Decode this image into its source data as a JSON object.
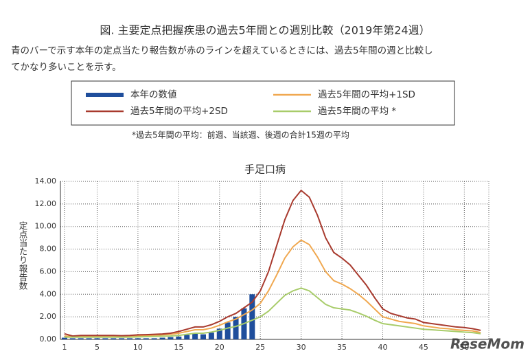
{
  "header": {
    "title": "図. 主要定点把握疾患の過去5年間との週別比較（2019年第24週）",
    "description": [
      "青のバーで示す本年の定点当たり報告数が赤のラインを超えているときには、過去5年間の週と比較し",
      "てかなり多いことを示す。"
    ],
    "footnote": "*過去5年間の平均：前週、当該週、後週の合計15週の平均"
  },
  "chart_data": {
    "type": "combo",
    "title": "手足口病",
    "y_label": "定点当たり報告数",
    "watermark": "ReseMom",
    "x": [
      1,
      2,
      3,
      4,
      5,
      6,
      7,
      8,
      9,
      10,
      11,
      12,
      13,
      14,
      15,
      16,
      17,
      18,
      19,
      20,
      21,
      22,
      23,
      24,
      25,
      26,
      27,
      28,
      29,
      30,
      31,
      32,
      33,
      34,
      35,
      36,
      37,
      38,
      39,
      40,
      41,
      42,
      43,
      44,
      45,
      46,
      47,
      48,
      49,
      50,
      51,
      52
    ],
    "series": [
      {
        "name": "本年の数値",
        "type": "bar",
        "color": "#1f4e9c",
        "values": [
          0.15,
          0.1,
          0.1,
          0.1,
          0.1,
          0.1,
          0.1,
          0.1,
          0.1,
          0.1,
          0.1,
          0.1,
          0.15,
          0.2,
          0.25,
          0.4,
          0.5,
          0.45,
          0.6,
          0.95,
          1.5,
          2.0,
          2.75,
          4.0,
          null,
          null,
          null,
          null,
          null,
          null,
          null,
          null,
          null,
          null,
          null,
          null,
          null,
          null,
          null,
          null,
          null,
          null,
          null,
          null,
          null,
          null,
          null,
          null,
          null,
          null,
          null,
          null
        ]
      },
      {
        "name": "過去5年間の平均+1SD",
        "type": "line",
        "color": "#f0a850",
        "values": [
          0.3,
          0.25,
          0.3,
          0.3,
          0.3,
          0.3,
          0.3,
          0.28,
          0.3,
          0.33,
          0.35,
          0.37,
          0.4,
          0.45,
          0.55,
          0.7,
          0.85,
          0.85,
          1.0,
          1.25,
          1.55,
          1.8,
          2.2,
          2.6,
          3.2,
          4.3,
          5.7,
          7.2,
          8.2,
          8.8,
          8.4,
          7.3,
          6.0,
          5.2,
          4.9,
          4.5,
          4.0,
          3.4,
          2.7,
          2.0,
          1.8,
          1.6,
          1.5,
          1.4,
          1.2,
          1.1,
          1.0,
          0.95,
          0.85,
          0.8,
          0.75,
          0.6
        ]
      },
      {
        "name": "過去5年間の平均+2SD",
        "type": "line",
        "color": "#a83a2e",
        "values": [
          0.5,
          0.3,
          0.35,
          0.35,
          0.35,
          0.35,
          0.35,
          0.33,
          0.35,
          0.4,
          0.42,
          0.45,
          0.48,
          0.55,
          0.7,
          0.9,
          1.1,
          1.1,
          1.3,
          1.6,
          2.0,
          2.3,
          2.8,
          3.3,
          4.3,
          6.0,
          8.3,
          10.6,
          12.3,
          13.2,
          12.6,
          11.0,
          9.0,
          7.7,
          7.2,
          6.6,
          5.7,
          4.8,
          3.7,
          2.7,
          2.3,
          2.1,
          1.9,
          1.8,
          1.5,
          1.4,
          1.3,
          1.2,
          1.1,
          1.05,
          0.95,
          0.8
        ]
      },
      {
        "name": "過去5年間の平均 *",
        "type": "line",
        "color": "#a8cc6a",
        "values": [
          0.2,
          0.2,
          0.2,
          0.2,
          0.2,
          0.2,
          0.2,
          0.2,
          0.2,
          0.22,
          0.24,
          0.26,
          0.28,
          0.3,
          0.35,
          0.45,
          0.55,
          0.55,
          0.65,
          0.8,
          1.0,
          1.15,
          1.4,
          1.7,
          2.0,
          2.5,
          3.2,
          3.9,
          4.3,
          4.55,
          4.3,
          3.7,
          3.1,
          2.8,
          2.7,
          2.6,
          2.35,
          2.05,
          1.7,
          1.4,
          1.3,
          1.2,
          1.1,
          1.0,
          0.9,
          0.85,
          0.8,
          0.75,
          0.7,
          0.65,
          0.6,
          0.5
        ]
      }
    ],
    "xlim": [
      0.5,
      53
    ],
    "xticks": [
      1,
      5,
      10,
      15,
      20,
      25,
      30,
      35,
      40,
      45,
      50
    ],
    "ylim": [
      0,
      14
    ],
    "yticks": [
      {
        "value": 0,
        "label": "0.00"
      },
      {
        "value": 2,
        "label": "2.00"
      },
      {
        "value": 4,
        "label": "4.00"
      },
      {
        "value": 6,
        "label": "6.00"
      },
      {
        "value": 8,
        "label": "8.00"
      },
      {
        "value": 10,
        "label": "10.00"
      },
      {
        "value": 12,
        "label": "12.00"
      },
      {
        "value": 14,
        "label": "14.00"
      }
    ],
    "grid": true
  }
}
